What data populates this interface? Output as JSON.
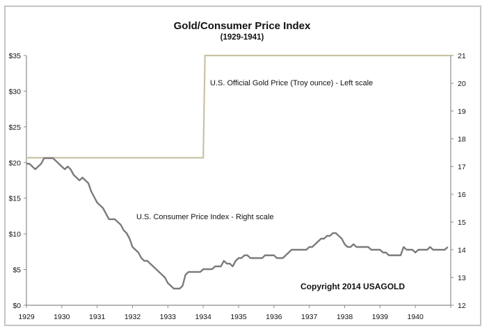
{
  "chart_data": {
    "type": "line",
    "title": "Gold/Consumer Price Index",
    "subtitle": "(1929-1941)",
    "xlabel": "",
    "ylabel_left": "",
    "ylabel_right": "",
    "x_range": [
      1929,
      1941
    ],
    "x_ticks": [
      "1929",
      "1930",
      "1931",
      "1932",
      "1933",
      "1934",
      "1935",
      "1936",
      "1937",
      "1938",
      "1939",
      "1940"
    ],
    "y_left": {
      "range": [
        0,
        35
      ],
      "ticks": [
        0,
        5,
        10,
        15,
        20,
        25,
        30,
        35
      ],
      "tick_labels": [
        "$0",
        "$5",
        "$10",
        "$15",
        "$20",
        "$25",
        "$30",
        "$35"
      ]
    },
    "y_right": {
      "range": [
        12,
        21
      ],
      "ticks": [
        12,
        13,
        14,
        15,
        16,
        17,
        18,
        19,
        20,
        21
      ],
      "tick_labels": [
        "12",
        "13",
        "14",
        "15",
        "16",
        "17",
        "18",
        "19",
        "20",
        "21"
      ]
    },
    "grid": false,
    "legend": "none",
    "series": [
      {
        "name": "U.S. Official Gold Price (Troy ounce) - Left scale",
        "axis": "left",
        "color": "#c8c2a4",
        "points": [
          [
            1929.0,
            20.67
          ],
          [
            1934.0,
            20.67
          ],
          [
            1934.05,
            35.0
          ],
          [
            1941.0,
            35.0
          ]
        ]
      },
      {
        "name": "U.S. Consumer Price Index - Right scale",
        "axis": "right",
        "color": "#7a7a7a",
        "start": 1929.0,
        "step": 0.0833333,
        "values": [
          17.1,
          17.1,
          17.0,
          16.9,
          17.0,
          17.1,
          17.3,
          17.3,
          17.3,
          17.3,
          17.2,
          17.1,
          17.0,
          16.9,
          17.0,
          16.9,
          16.7,
          16.6,
          16.5,
          16.6,
          16.5,
          16.4,
          16.1,
          15.9,
          15.7,
          15.6,
          15.5,
          15.3,
          15.1,
          15.1,
          15.1,
          15.0,
          14.9,
          14.7,
          14.6,
          14.4,
          14.1,
          14.0,
          13.9,
          13.7,
          13.6,
          13.6,
          13.5,
          13.4,
          13.3,
          13.2,
          13.1,
          13.0,
          12.8,
          12.7,
          12.6,
          12.6,
          12.6,
          12.7,
          13.1,
          13.2,
          13.2,
          13.2,
          13.2,
          13.2,
          13.3,
          13.3,
          13.3,
          13.3,
          13.4,
          13.4,
          13.4,
          13.6,
          13.5,
          13.5,
          13.4,
          13.6,
          13.7,
          13.7,
          13.8,
          13.8,
          13.7,
          13.7,
          13.7,
          13.7,
          13.7,
          13.8,
          13.8,
          13.8,
          13.8,
          13.7,
          13.7,
          13.7,
          13.8,
          13.9,
          14.0,
          14.0,
          14.0,
          14.0,
          14.0,
          14.0,
          14.1,
          14.1,
          14.2,
          14.3,
          14.4,
          14.4,
          14.5,
          14.5,
          14.6,
          14.6,
          14.5,
          14.4,
          14.2,
          14.1,
          14.1,
          14.2,
          14.1,
          14.1,
          14.1,
          14.1,
          14.1,
          14.0,
          14.0,
          14.0,
          14.0,
          13.9,
          13.9,
          13.8,
          13.8,
          13.8,
          13.8,
          13.8,
          14.1,
          14.0,
          14.0,
          14.0,
          13.9,
          14.0,
          14.0,
          14.0,
          14.0,
          14.1,
          14.0,
          14.0,
          14.0,
          14.0,
          14.0,
          14.1
        ]
      }
    ],
    "annotations": [
      "U.S. Official Gold Price (Troy ounce) - Left scale",
      "U.S. Consumer Price Index - Right scale",
      "Copyright 2014 USAGOLD"
    ]
  }
}
